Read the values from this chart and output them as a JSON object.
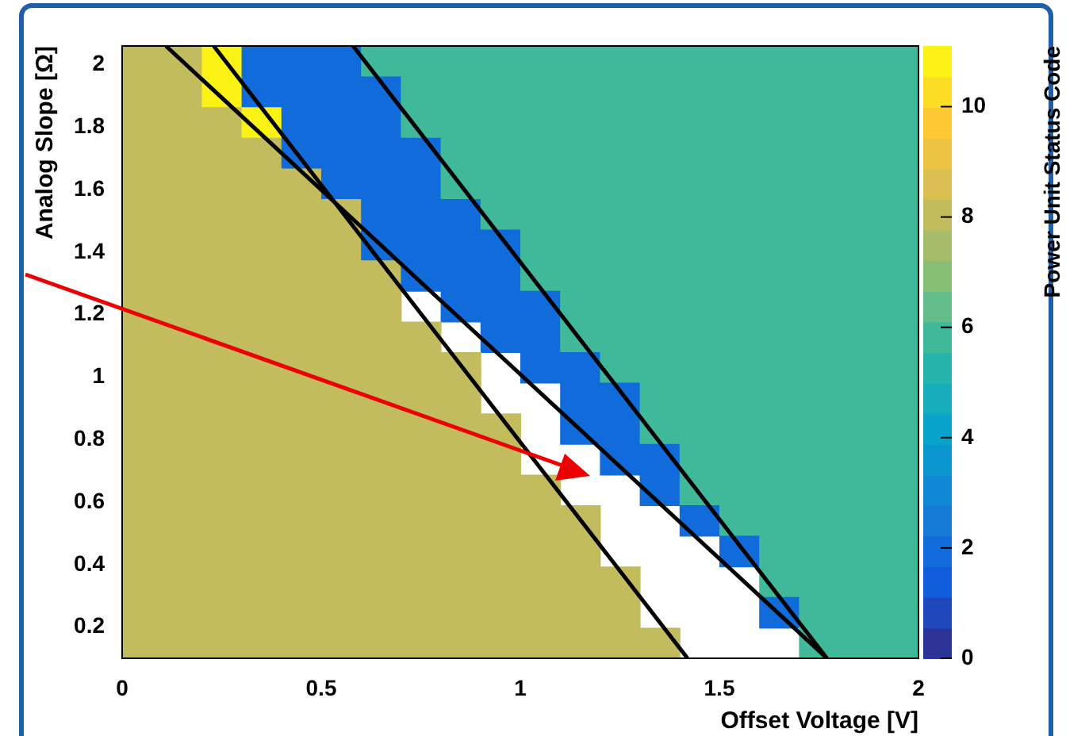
{
  "chart_data": {
    "type": "heatmap",
    "xlabel": "Offset Voltage [V]",
    "ylabel": "Analog Slope [Ω]",
    "clabel": "Power Unit Status Code",
    "xlim": [
      0,
      2
    ],
    "xticks": [
      0,
      0.5,
      1,
      1.5,
      2
    ],
    "ylim": [
      0.1,
      2.06
    ],
    "yticks": [
      0.2,
      0.4,
      0.6,
      0.8,
      1,
      1.2,
      1.4,
      1.6,
      1.8,
      2
    ],
    "clim": [
      0,
      11.1
    ],
    "cticks": [
      0,
      2,
      4,
      6,
      8,
      10
    ],
    "cells": [
      [
        8,
        8,
        11,
        2,
        2,
        2,
        6,
        6,
        6,
        6,
        6,
        6,
        6,
        6,
        6,
        6,
        6,
        6,
        6,
        6
      ],
      [
        8,
        8,
        11,
        2,
        2,
        2,
        2,
        6,
        6,
        6,
        6,
        6,
        6,
        6,
        6,
        6,
        6,
        6,
        6,
        6
      ],
      [
        8,
        8,
        8,
        11,
        2,
        2,
        2,
        6,
        6,
        6,
        6,
        6,
        6,
        6,
        6,
        6,
        6,
        6,
        6,
        6
      ],
      [
        8,
        8,
        8,
        8,
        2,
        2,
        2,
        2,
        6,
        6,
        6,
        6,
        6,
        6,
        6,
        6,
        6,
        6,
        6,
        6
      ],
      [
        8,
        8,
        8,
        8,
        8,
        2,
        2,
        2,
        6,
        6,
        6,
        6,
        6,
        6,
        6,
        6,
        6,
        6,
        6,
        6
      ],
      [
        8,
        8,
        8,
        8,
        8,
        8,
        2,
        2,
        2,
        6,
        6,
        6,
        6,
        6,
        6,
        6,
        6,
        6,
        6,
        6
      ],
      [
        8,
        8,
        8,
        8,
        8,
        8,
        2,
        2,
        2,
        2,
        6,
        6,
        6,
        6,
        6,
        6,
        6,
        6,
        6,
        6
      ],
      [
        8,
        8,
        8,
        8,
        8,
        8,
        8,
        2,
        2,
        2,
        6,
        6,
        6,
        6,
        6,
        6,
        6,
        6,
        6,
        6
      ],
      [
        8,
        8,
        8,
        8,
        8,
        8,
        8,
        null,
        2,
        2,
        2,
        6,
        6,
        6,
        6,
        6,
        6,
        6,
        6,
        6
      ],
      [
        8,
        8,
        8,
        8,
        8,
        8,
        8,
        8,
        null,
        2,
        2,
        6,
        6,
        6,
        6,
        6,
        6,
        6,
        6,
        6
      ],
      [
        8,
        8,
        8,
        8,
        8,
        8,
        8,
        8,
        8,
        null,
        2,
        2,
        6,
        6,
        6,
        6,
        6,
        6,
        6,
        6
      ],
      [
        8,
        8,
        8,
        8,
        8,
        8,
        8,
        8,
        8,
        null,
        null,
        2,
        2,
        6,
        6,
        6,
        6,
        6,
        6,
        6
      ],
      [
        8,
        8,
        8,
        8,
        8,
        8,
        8,
        8,
        8,
        8,
        null,
        2,
        2,
        6,
        6,
        6,
        6,
        6,
        6,
        6
      ],
      [
        8,
        8,
        8,
        8,
        8,
        8,
        8,
        8,
        8,
        8,
        null,
        null,
        2,
        2,
        6,
        6,
        6,
        6,
        6,
        6
      ],
      [
        8,
        8,
        8,
        8,
        8,
        8,
        8,
        8,
        8,
        8,
        8,
        null,
        null,
        2,
        6,
        6,
        6,
        6,
        6,
        6
      ],
      [
        8,
        8,
        8,
        8,
        8,
        8,
        8,
        8,
        8,
        8,
        8,
        8,
        null,
        null,
        2,
        6,
        6,
        6,
        6,
        6
      ],
      [
        8,
        8,
        8,
        8,
        8,
        8,
        8,
        8,
        8,
        8,
        8,
        8,
        null,
        null,
        null,
        2,
        6,
        6,
        6,
        6
      ],
      [
        8,
        8,
        8,
        8,
        8,
        8,
        8,
        8,
        8,
        8,
        8,
        8,
        8,
        null,
        null,
        null,
        6,
        6,
        6,
        6
      ],
      [
        8,
        8,
        8,
        8,
        8,
        8,
        8,
        8,
        8,
        8,
        8,
        8,
        8,
        null,
        null,
        null,
        2,
        6,
        6,
        6
      ],
      [
        8,
        8,
        8,
        8,
        8,
        8,
        8,
        8,
        8,
        8,
        8,
        8,
        8,
        8,
        null,
        null,
        null,
        6,
        6,
        6
      ]
    ],
    "series": [
      {
        "type": "line",
        "color": "#000000",
        "x": [
          0.11,
          1.77
        ],
        "values": [
          2.06,
          0.1
        ]
      },
      {
        "type": "line",
        "color": "#000000",
        "x": [
          0.23,
          1.42
        ],
        "values": [
          2.06,
          0.1
        ]
      },
      {
        "type": "line",
        "color": "#000000",
        "x": [
          0.58,
          1.77
        ],
        "values": [
          2.06,
          0.1
        ]
      }
    ]
  }
}
